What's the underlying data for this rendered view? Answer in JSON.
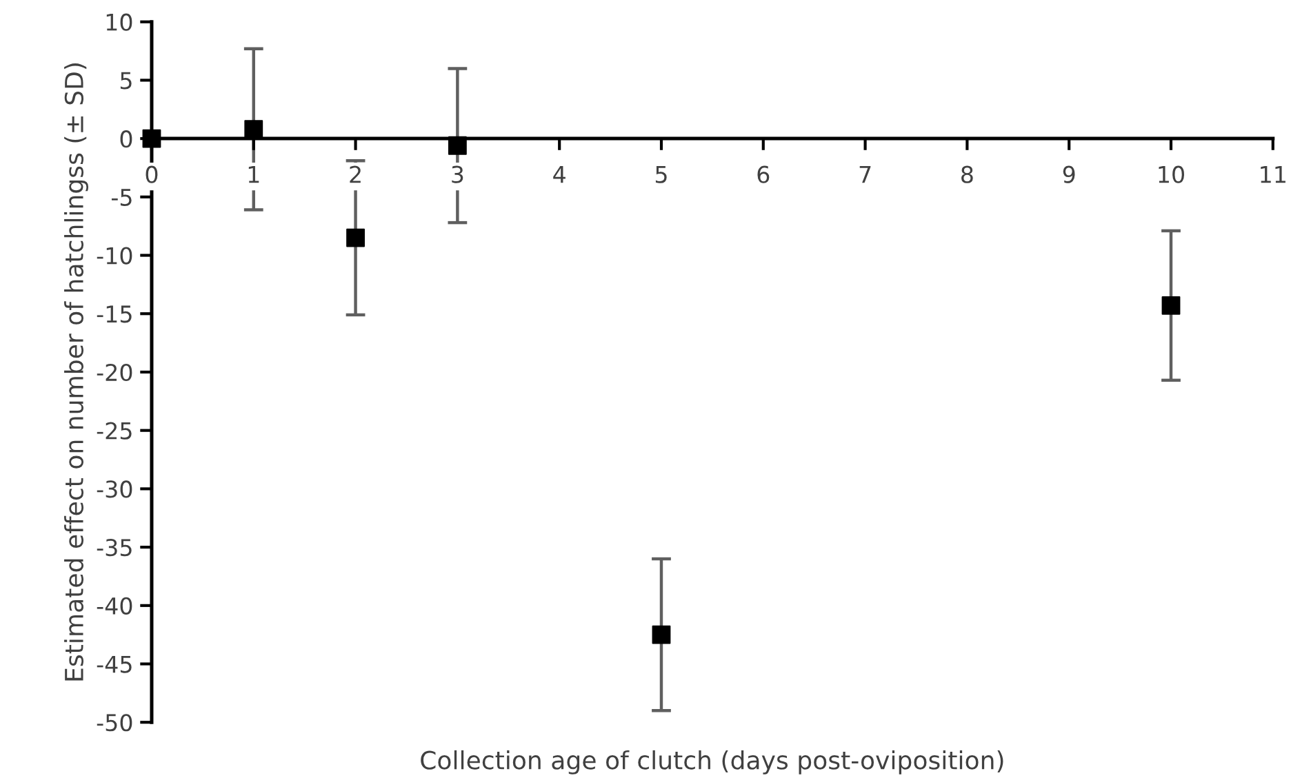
{
  "chart_data": {
    "type": "scatter",
    "xlabel": "Collection age of clutch (days post-oviposition)",
    "ylabel": "Estimated effect on number of hatchlingss (± SD)",
    "x": [
      0,
      1,
      2,
      3,
      5,
      10
    ],
    "values": [
      0,
      0.8,
      -8.5,
      -0.6,
      -42.5,
      -14.3
    ],
    "errors": [
      null,
      6.9,
      6.6,
      6.6,
      6.5,
      6.4
    ],
    "color": "#000000",
    "marker": "square",
    "xlim": [
      0,
      11
    ],
    "xticks": [
      0,
      1,
      2,
      3,
      4,
      5,
      6,
      7,
      8,
      9,
      10,
      11
    ],
    "ylim": [
      -50,
      10
    ],
    "yticks": [
      -50,
      -45,
      -40,
      -35,
      -30,
      -25,
      -20,
      -15,
      -10,
      -5,
      0,
      5,
      10
    ],
    "grid": false
  }
}
